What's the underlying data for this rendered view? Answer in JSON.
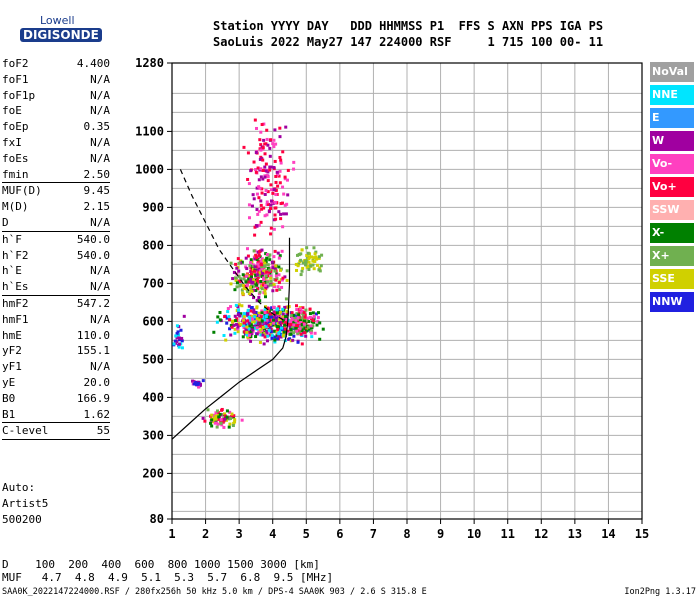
{
  "logo": {
    "top": "Lowell",
    "bottom": "DIGISONDE"
  },
  "header": {
    "line1": "Station YYYY DAY   DDD HHMMSS P1  FFS S AXN PPS IGA PS",
    "line2": "SaoLuis 2022 May27 147 224000 RSF     1 715 100 00- 11"
  },
  "params": [
    {
      "k": "foF2",
      "v": "4.400"
    },
    {
      "k": "foF1",
      "v": "N/A"
    },
    {
      "k": "foF1p",
      "v": "N/A"
    },
    {
      "k": "foE",
      "v": "N/A"
    },
    {
      "k": "foEp",
      "v": "0.35"
    },
    {
      "k": "fxI",
      "v": "N/A"
    },
    {
      "k": "foEs",
      "v": "N/A"
    },
    {
      "k": "fmin",
      "v": "2.50"
    },
    {
      "sep": true
    },
    {
      "k": "MUF(D)",
      "v": "9.45"
    },
    {
      "k": "M(D)",
      "v": "2.15"
    },
    {
      "k": "D",
      "v": "N/A"
    },
    {
      "sep": true
    },
    {
      "k": "h`F",
      "v": "540.0"
    },
    {
      "k": "h`F2",
      "v": "540.0"
    },
    {
      "k": "h`E",
      "v": "N/A"
    },
    {
      "k": "h`Es",
      "v": "N/A"
    },
    {
      "sep": true
    },
    {
      "k": "hmF2",
      "v": "547.2"
    },
    {
      "k": "hmF1",
      "v": "N/A"
    },
    {
      "k": "hmE",
      "v": "110.0"
    },
    {
      "k": "yF2",
      "v": "155.1"
    },
    {
      "k": "yF1",
      "v": "N/A"
    },
    {
      "k": "yE",
      "v": "20.0"
    },
    {
      "k": "B0",
      "v": "166.9"
    },
    {
      "k": "B1",
      "v": "1.62"
    },
    {
      "sep": true
    },
    {
      "k": "C-level",
      "v": "55"
    },
    {
      "sep": true
    }
  ],
  "auto": {
    "l1": "Auto:",
    "l2": "Artist5",
    "l3": "500200"
  },
  "muf_table": {
    "d_line": "D    100  200  400  600  800 1000 1500 3000 [km]",
    "muf_line": "MUF   4.7  4.8  4.9  5.1  5.3  5.7  6.8  9.5 [MHz]"
  },
  "footer": {
    "left": "SAA0K_2022147224000.RSF / 280fx256h 50 kHz 5.0 km / DPS-4 SAA0K 903 / 2.6 S 315.8 E",
    "right": "Ion2Png 1.3.17"
  },
  "legend": [
    {
      "label": "NoVal",
      "color": "#a0a0a0"
    },
    {
      "label": "NNE",
      "color": "#00e5ff"
    },
    {
      "label": "E",
      "color": "#3399ff"
    },
    {
      "label": "W",
      "color": "#a000a0"
    },
    {
      "label": "Vo-",
      "color": "#ff40c0"
    },
    {
      "label": "Vo+",
      "color": "#ff0040"
    },
    {
      "label": "SSW",
      "color": "#ffb0b0"
    },
    {
      "label": "X-",
      "color": "#008000"
    },
    {
      "label": "X+",
      "color": "#70b050"
    },
    {
      "label": "SSE",
      "color": "#d0d000"
    },
    {
      "label": "NNW",
      "color": "#2020e0"
    }
  ],
  "chart_data": {
    "type": "scatter",
    "title": "",
    "xlabel": "",
    "ylabel": "",
    "xlim": [
      1,
      15
    ],
    "ylim": [
      80,
      1280
    ],
    "x_ticks": [
      1,
      2,
      3,
      4,
      5,
      6,
      7,
      8,
      9,
      10,
      11,
      12,
      13,
      14,
      15
    ],
    "y_ticks": [
      80,
      200,
      300,
      400,
      500,
      600,
      700,
      800,
      900,
      1000,
      1100,
      1280
    ],
    "y_tick_labels": [
      "80",
      "200",
      "300",
      "400",
      "500",
      "600",
      "700",
      "800",
      "900",
      "1000",
      "1100",
      "1280"
    ],
    "grid": true,
    "profile_line": [
      [
        1.0,
        290
      ],
      [
        1.5,
        330
      ],
      [
        2.0,
        370
      ],
      [
        2.5,
        405
      ],
      [
        3.0,
        440
      ],
      [
        3.5,
        470
      ],
      [
        4.0,
        500
      ],
      [
        4.3,
        530
      ],
      [
        4.4,
        560
      ],
      [
        4.45,
        600
      ],
      [
        4.5,
        700
      ],
      [
        4.5,
        820
      ]
    ],
    "mufd_dashed": [
      [
        1.25,
        1000
      ],
      [
        1.6,
        930
      ],
      [
        2.0,
        860
      ],
      [
        2.4,
        790
      ],
      [
        2.8,
        740
      ],
      [
        3.2,
        690
      ],
      [
        3.6,
        650
      ],
      [
        4.0,
        620
      ],
      [
        4.4,
        600
      ]
    ],
    "echo_clusters": [
      {
        "x": [
          2.0,
          5.7
        ],
        "y": [
          540,
          650
        ],
        "n": 520,
        "colors": [
          "#a000a0",
          "#ff40c0",
          "#2020e0",
          "#ff0040",
          "#008000",
          "#d0d000",
          "#00e5ff"
        ]
      },
      {
        "x": [
          2.6,
          4.6
        ],
        "y": [
          650,
          800
        ],
        "n": 300,
        "colors": [
          "#a000a0",
          "#ff40c0",
          "#d0d000",
          "#008000",
          "#ff0040",
          "#70b050"
        ]
      },
      {
        "x": [
          3.0,
          4.8
        ],
        "y": [
          800,
          1150
        ],
        "n": 170,
        "colors": [
          "#a000a0",
          "#ff40c0",
          "#ff0040"
        ]
      },
      {
        "x": [
          4.2,
          5.5
        ],
        "y": [
          560,
          640
        ],
        "n": 140,
        "colors": [
          "#008000",
          "#70b050",
          "#ff40c0",
          "#ff0040"
        ]
      },
      {
        "x": [
          1.8,
          3.2
        ],
        "y": [
          320,
          370
        ],
        "n": 80,
        "colors": [
          "#ff0040",
          "#d0d000",
          "#70b050",
          "#008000",
          "#ff40c0",
          "#a000a0"
        ]
      },
      {
        "x": [
          1.5,
          2.0
        ],
        "y": [
          425,
          445
        ],
        "n": 30,
        "colors": [
          "#a000a0",
          "#2020e0",
          "#ff40c0"
        ]
      },
      {
        "x": [
          4.4,
          5.6
        ],
        "y": [
          720,
          800
        ],
        "n": 60,
        "colors": [
          "#d0d000",
          "#70b050"
        ]
      },
      {
        "x": [
          1.0,
          1.4
        ],
        "y": [
          500,
          620
        ],
        "n": 25,
        "colors": [
          "#2020e0",
          "#a000a0",
          "#00e5ff"
        ]
      }
    ]
  }
}
